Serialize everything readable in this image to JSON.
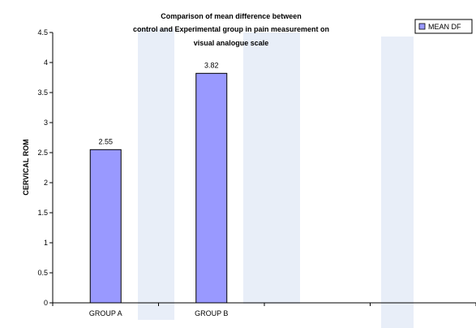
{
  "colors": {
    "bar_fill": "#9999ff",
    "bar_stroke": "#000000",
    "watermark": "#e8eef8"
  },
  "chart_data": {
    "type": "bar",
    "title_lines": [
      "Comparison of mean difference between",
      "control and Experimental group in pain measurement on",
      "visual analogue scale"
    ],
    "categories": [
      "GROUP A",
      "GROUP B",
      "",
      ""
    ],
    "series": [
      {
        "name": "MEAN DF",
        "values": [
          2.55,
          3.82,
          null,
          null
        ]
      }
    ],
    "data_labels": [
      "2.55",
      "3.82"
    ],
    "xlabel": "",
    "ylabel": "CERVICAL ROM",
    "ylim": [
      0,
      4.5
    ],
    "yticks": [
      "0",
      "0.5",
      "1",
      "1.5",
      "2",
      "2.5",
      "3",
      "3.5",
      "4",
      "4.5"
    ],
    "grid": false,
    "legend_position": "top-right"
  }
}
